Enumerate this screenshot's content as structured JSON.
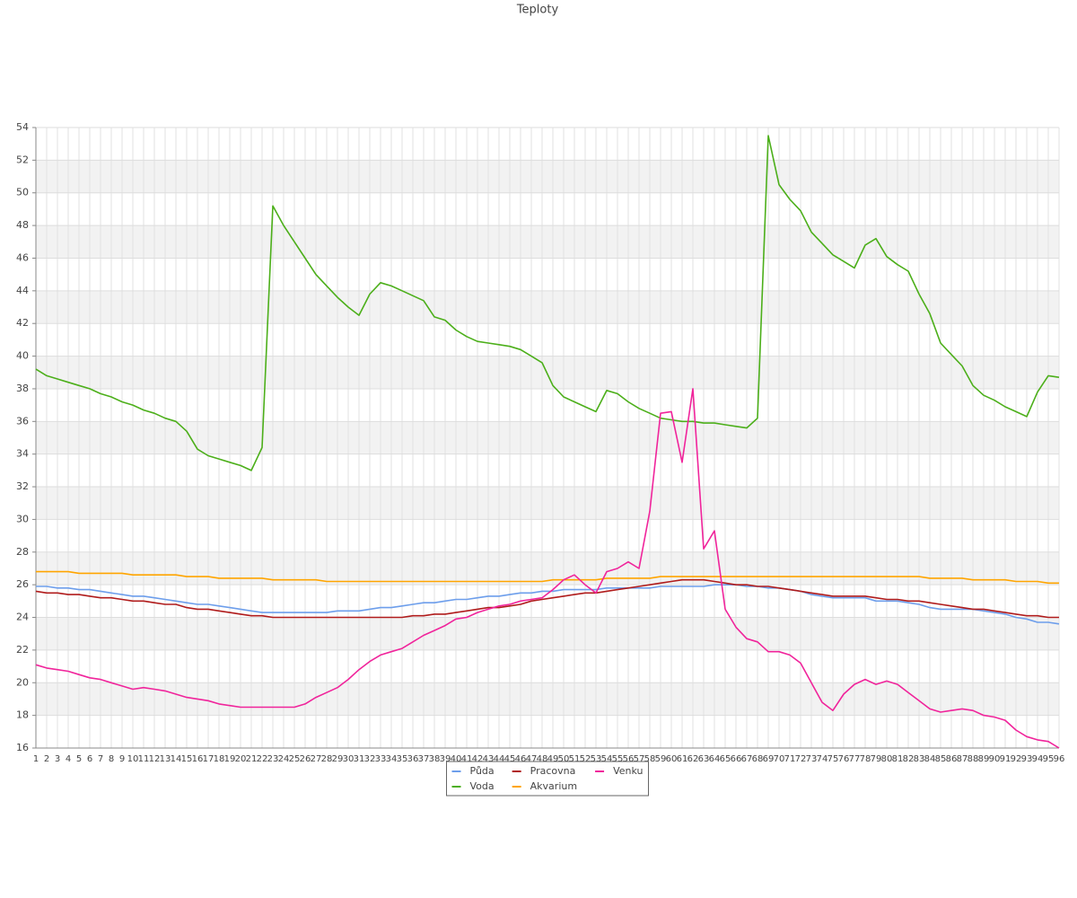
{
  "chart_data": {
    "type": "line",
    "title": "Teploty",
    "categories": [
      1,
      2,
      3,
      4,
      5,
      6,
      7,
      8,
      9,
      10,
      11,
      12,
      13,
      14,
      15,
      16,
      17,
      18,
      19,
      20,
      21,
      22,
      23,
      24,
      25,
      26,
      27,
      28,
      29,
      30,
      31,
      32,
      33,
      34,
      35,
      36,
      37,
      38,
      39,
      40,
      41,
      42,
      43,
      44,
      45,
      46,
      47,
      48,
      49,
      50,
      51,
      52,
      53,
      54,
      55,
      56,
      57,
      58,
      59,
      60,
      61,
      62,
      63,
      64,
      65,
      66,
      67,
      68,
      69,
      70,
      71,
      72,
      73,
      74,
      75,
      76,
      77,
      78,
      79,
      80,
      81,
      82,
      83,
      84,
      85,
      86,
      87,
      88,
      89,
      90,
      91,
      92,
      93,
      94,
      95,
      96
    ],
    "ylim": [
      16,
      54
    ],
    "yticks": [
      16,
      18,
      20,
      22,
      24,
      26,
      28,
      30,
      32,
      34,
      36,
      38,
      40,
      42,
      44,
      46,
      48,
      50,
      52,
      54
    ],
    "grid": true,
    "legend": "bottom",
    "series": [
      {
        "name": "Půda",
        "color": "#6d9eeb",
        "values": [
          25.9,
          25.9,
          25.8,
          25.8,
          25.7,
          25.7,
          25.6,
          25.5,
          25.4,
          25.3,
          25.3,
          25.2,
          25.1,
          25.0,
          24.9,
          24.8,
          24.8,
          24.7,
          24.6,
          24.5,
          24.4,
          24.3,
          24.3,
          24.3,
          24.3,
          24.3,
          24.3,
          24.3,
          24.4,
          24.4,
          24.4,
          24.5,
          24.6,
          24.6,
          24.7,
          24.8,
          24.9,
          24.9,
          25.0,
          25.1,
          25.1,
          25.2,
          25.3,
          25.3,
          25.4,
          25.5,
          25.5,
          25.6,
          25.6,
          25.7,
          25.7,
          25.7,
          25.7,
          25.8,
          25.8,
          25.8,
          25.8,
          25.8,
          25.9,
          25.9,
          25.9,
          25.9,
          25.9,
          26.0,
          26.0,
          26.0,
          25.9,
          25.9,
          25.8,
          25.8,
          25.7,
          25.6,
          25.4,
          25.3,
          25.2,
          25.2,
          25.2,
          25.2,
          25.0,
          25.0,
          25.0,
          24.9,
          24.8,
          24.6,
          24.5,
          24.5,
          24.5,
          24.5,
          24.4,
          24.3,
          24.2,
          24.0,
          23.9,
          23.7,
          23.7,
          23.6
        ]
      },
      {
        "name": "Voda",
        "color": "#4caf1a",
        "values": [
          39.2,
          38.8,
          38.6,
          38.4,
          38.2,
          38.0,
          37.7,
          37.5,
          37.2,
          37.0,
          36.7,
          36.5,
          36.2,
          36.0,
          35.4,
          34.3,
          33.9,
          33.7,
          33.5,
          33.3,
          33.0,
          34.4,
          49.2,
          48.0,
          47.0,
          46.0,
          45.0,
          44.3,
          43.6,
          43.0,
          42.5,
          43.8,
          44.5,
          44.3,
          44.0,
          43.7,
          43.4,
          42.4,
          42.2,
          41.6,
          41.2,
          40.9,
          40.8,
          40.7,
          40.6,
          40.4,
          40.0,
          39.6,
          38.2,
          37.5,
          37.2,
          36.9,
          36.6,
          37.9,
          37.7,
          37.2,
          36.8,
          36.5,
          36.2,
          36.1,
          36.0,
          36.0,
          35.9,
          35.9,
          35.8,
          35.7,
          35.6,
          36.2,
          53.5,
          50.5,
          49.6,
          48.9,
          47.6,
          46.9,
          46.2,
          45.8,
          45.4,
          46.8,
          47.2,
          46.1,
          45.6,
          45.2,
          43.8,
          42.6,
          40.8,
          40.1,
          39.4,
          38.2,
          37.6,
          37.3,
          36.9,
          36.6,
          36.3,
          37.8,
          38.8,
          38.7
        ]
      },
      {
        "name": "Pracovna",
        "color": "#b01c1c",
        "values": [
          25.6,
          25.5,
          25.5,
          25.4,
          25.4,
          25.3,
          25.2,
          25.2,
          25.1,
          25.0,
          25.0,
          24.9,
          24.8,
          24.8,
          24.6,
          24.5,
          24.5,
          24.4,
          24.3,
          24.2,
          24.1,
          24.1,
          24.0,
          24.0,
          24.0,
          24.0,
          24.0,
          24.0,
          24.0,
          24.0,
          24.0,
          24.0,
          24.0,
          24.0,
          24.0,
          24.1,
          24.1,
          24.2,
          24.2,
          24.3,
          24.4,
          24.5,
          24.6,
          24.6,
          24.7,
          24.8,
          25.0,
          25.1,
          25.2,
          25.3,
          25.4,
          25.5,
          25.5,
          25.6,
          25.7,
          25.8,
          25.9,
          26.0,
          26.1,
          26.2,
          26.3,
          26.3,
          26.3,
          26.2,
          26.1,
          26.0,
          26.0,
          25.9,
          25.9,
          25.8,
          25.7,
          25.6,
          25.5,
          25.4,
          25.3,
          25.3,
          25.3,
          25.3,
          25.2,
          25.1,
          25.1,
          25.0,
          25.0,
          24.9,
          24.8,
          24.7,
          24.6,
          24.5,
          24.5,
          24.4,
          24.3,
          24.2,
          24.1,
          24.1,
          24.0,
          24.0
        ]
      },
      {
        "name": "Akvarium",
        "color": "#ffa500",
        "values": [
          26.8,
          26.8,
          26.8,
          26.8,
          26.7,
          26.7,
          26.7,
          26.7,
          26.7,
          26.6,
          26.6,
          26.6,
          26.6,
          26.6,
          26.5,
          26.5,
          26.5,
          26.4,
          26.4,
          26.4,
          26.4,
          26.4,
          26.3,
          26.3,
          26.3,
          26.3,
          26.3,
          26.2,
          26.2,
          26.2,
          26.2,
          26.2,
          26.2,
          26.2,
          26.2,
          26.2,
          26.2,
          26.2,
          26.2,
          26.2,
          26.2,
          26.2,
          26.2,
          26.2,
          26.2,
          26.2,
          26.2,
          26.2,
          26.3,
          26.3,
          26.3,
          26.3,
          26.3,
          26.4,
          26.4,
          26.4,
          26.4,
          26.4,
          26.5,
          26.5,
          26.5,
          26.5,
          26.5,
          26.5,
          26.5,
          26.5,
          26.5,
          26.5,
          26.5,
          26.5,
          26.5,
          26.5,
          26.5,
          26.5,
          26.5,
          26.5,
          26.5,
          26.5,
          26.5,
          26.5,
          26.5,
          26.5,
          26.5,
          26.4,
          26.4,
          26.4,
          26.4,
          26.3,
          26.3,
          26.3,
          26.3,
          26.2,
          26.2,
          26.2,
          26.1,
          26.1
        ]
      },
      {
        "name": "Venku",
        "color": "#f0249b",
        "values": [
          21.1,
          20.9,
          20.8,
          20.7,
          20.5,
          20.3,
          20.2,
          20.0,
          19.8,
          19.6,
          19.7,
          19.6,
          19.5,
          19.3,
          19.1,
          19.0,
          18.9,
          18.7,
          18.6,
          18.5,
          18.5,
          18.5,
          18.5,
          18.5,
          18.5,
          18.7,
          19.1,
          19.4,
          19.7,
          20.2,
          20.8,
          21.3,
          21.7,
          21.9,
          22.1,
          22.5,
          22.9,
          23.2,
          23.5,
          23.9,
          24.0,
          24.3,
          24.5,
          24.7,
          24.8,
          25.0,
          25.1,
          25.2,
          25.7,
          26.3,
          26.6,
          26.0,
          25.5,
          26.8,
          27.0,
          27.4,
          27.0,
          30.5,
          36.5,
          36.6,
          33.5,
          38.0,
          28.2,
          29.3,
          24.5,
          23.4,
          22.7,
          22.5,
          21.9,
          21.9,
          21.7,
          21.2,
          20.0,
          18.8,
          18.3,
          19.3,
          19.9,
          20.2,
          19.9,
          20.1,
          19.9,
          19.4,
          18.9,
          18.4,
          18.2,
          18.3,
          18.4,
          18.3,
          18.0,
          17.9,
          17.7,
          17.1,
          16.7,
          16.5,
          16.4,
          16.0
        ]
      }
    ]
  }
}
